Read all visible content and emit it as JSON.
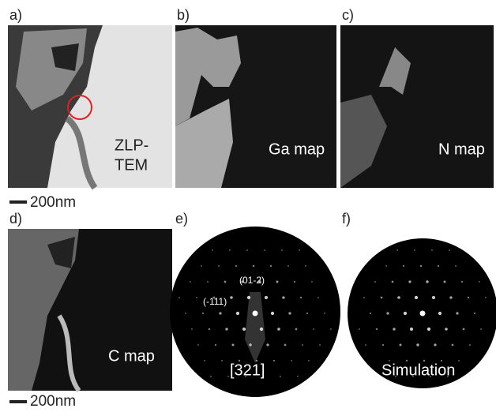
{
  "panels": [
    {
      "label": "a)",
      "caption": [
        "ZLP-",
        "TEM"
      ]
    },
    {
      "label": "b)",
      "caption": [
        "Ga map"
      ]
    },
    {
      "label": "c)",
      "caption": [
        "N map"
      ]
    },
    {
      "label": "d)",
      "caption": [
        "C map"
      ]
    },
    {
      "label": "e)",
      "caption": [
        "[321]"
      ],
      "annotations": [
        "(01-2)",
        "(-111)"
      ]
    },
    {
      "label": "f)",
      "caption": [
        "Simulation"
      ]
    }
  ],
  "scale_bars": [
    "200nm",
    "200nm"
  ]
}
